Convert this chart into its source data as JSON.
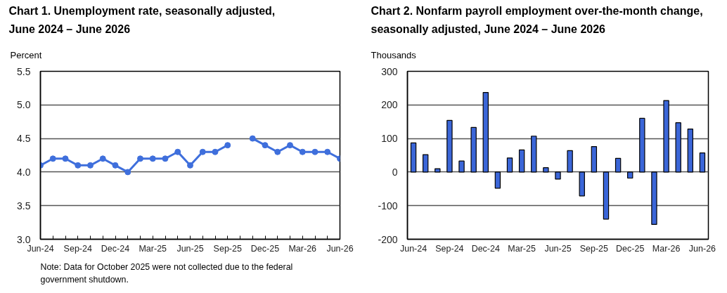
{
  "chart_data": [
    {
      "type": "line",
      "title": "Chart 1. Unemployment rate, seasonally adjusted, June 2024 – June 2026",
      "ylabel": "Percent",
      "categories": [
        "Jun-24",
        null,
        null,
        "Sep-24",
        null,
        null,
        "Dec-24",
        null,
        null,
        "Mar-25",
        null,
        null,
        "Jun-25",
        null,
        null,
        "Sep-25",
        null,
        null,
        "Dec-25",
        null,
        null,
        "Mar-26",
        null,
        null,
        "Jun-26"
      ],
      "values": [
        4.1,
        4.2,
        4.2,
        4.1,
        4.1,
        4.2,
        4.1,
        4.0,
        4.2,
        4.2,
        4.2,
        4.3,
        4.1,
        4.3,
        4.3,
        4.4,
        null,
        4.5,
        4.4,
        4.3,
        4.4,
        4.3,
        4.3,
        4.3,
        4.2
      ],
      "color": "#3f6fdc",
      "marker": "circle",
      "ylim": [
        3,
        5.5
      ],
      "yticks": [
        {
          "value": 3,
          "label": "3.0"
        },
        3.5,
        {
          "value": 4,
          "label": "4.0"
        },
        4.5,
        {
          "value": 5,
          "label": "5.0"
        },
        5.5
      ],
      "grid": "y",
      "annotations": [
        "Note: Data for October 2025 were not collected due to the federal government shutdown."
      ]
    },
    {
      "type": "bar",
      "title": "Chart 2. Nonfarm payroll employment over-the-month change, seasonally adjusted, June 2024 – June 2026",
      "ylabel": "Thousands",
      "categories": [
        "Jun-24",
        null,
        null,
        "Sep-24",
        null,
        null,
        "Dec-24",
        null,
        null,
        "Mar-25",
        null,
        null,
        "Jun-25",
        null,
        null,
        "Sep-25",
        null,
        null,
        "Dec-25",
        null,
        null,
        "Mar-26",
        null,
        null,
        "Jun-26"
      ],
      "values": [
        87,
        52,
        10,
        154,
        33,
        133,
        237,
        -48,
        42,
        66,
        107,
        13,
        -21,
        64,
        -71,
        76,
        -140,
        41,
        -18,
        160,
        -156,
        213,
        147,
        128,
        57
      ],
      "color": "#3b66d8",
      "ylim": [
        -200,
        300
      ],
      "yticks": [
        -200,
        -100,
        0,
        100,
        200,
        300
      ],
      "grid": "y"
    }
  ]
}
